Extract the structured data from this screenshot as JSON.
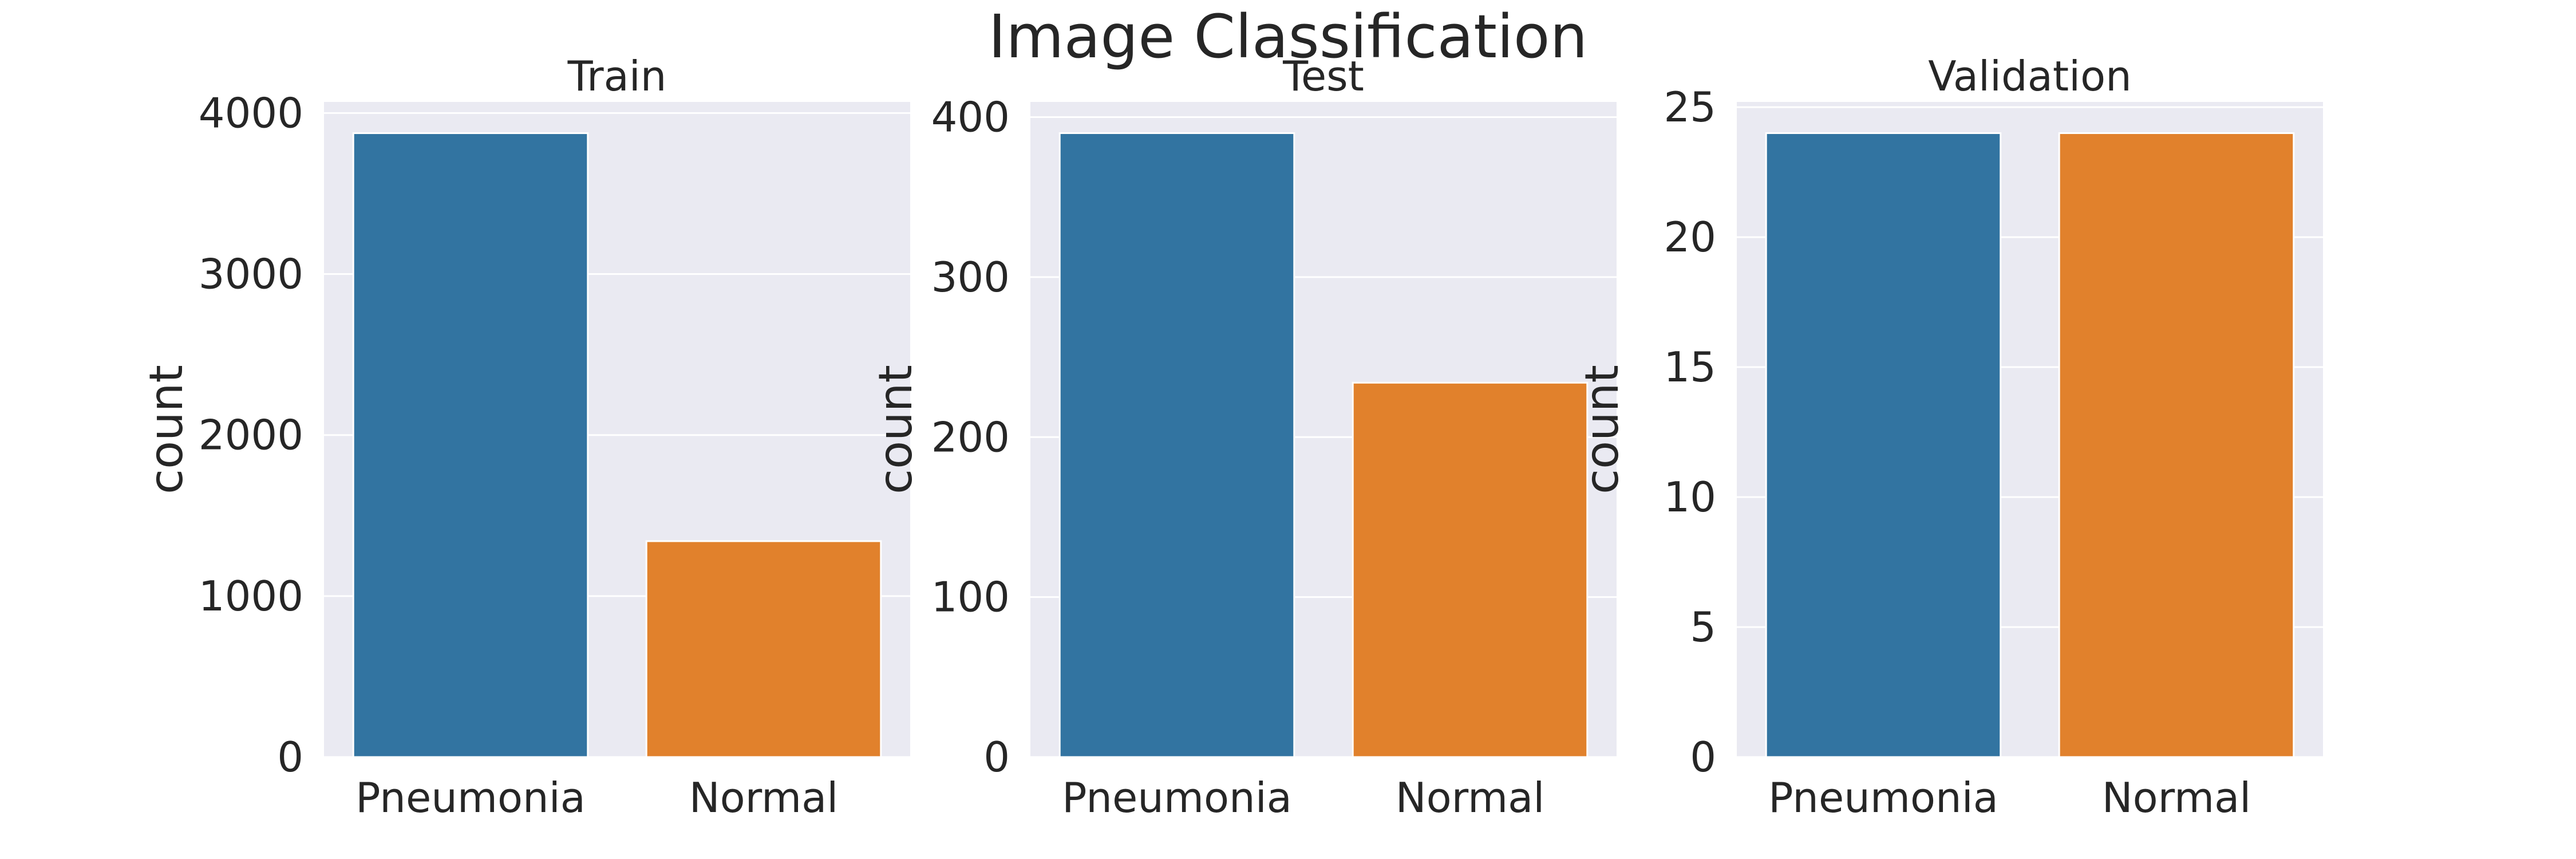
{
  "figure_title": "Image Classification",
  "colors": {
    "pneumonia": "#3274a1",
    "normal": "#e1812c",
    "axes_bg": "#eaeaf2",
    "grid": "#ffffff"
  },
  "chart_data": [
    {
      "type": "bar",
      "title": "Train",
      "categories": [
        "Pneumonia",
        "Normal"
      ],
      "values": [
        3875,
        1341
      ],
      "xlabel": "",
      "ylabel": "count",
      "ylim": [
        0,
        4069
      ],
      "yticks": [
        0,
        1000,
        2000,
        3000,
        4000
      ],
      "grid": true
    },
    {
      "type": "bar",
      "title": "Test",
      "categories": [
        "Pneumonia",
        "Normal"
      ],
      "values": [
        390,
        234
      ],
      "xlabel": "",
      "ylabel": "count",
      "ylim": [
        0,
        409.5
      ],
      "yticks": [
        0,
        100,
        200,
        300,
        400
      ],
      "grid": true
    },
    {
      "type": "bar",
      "title": "Validation",
      "categories": [
        "Pneumonia",
        "Normal"
      ],
      "values": [
        24,
        24
      ],
      "xlabel": "",
      "ylabel": "count",
      "ylim": [
        0,
        25.2
      ],
      "yticks": [
        0,
        5,
        10,
        15,
        20,
        25
      ],
      "grid": true
    }
  ]
}
